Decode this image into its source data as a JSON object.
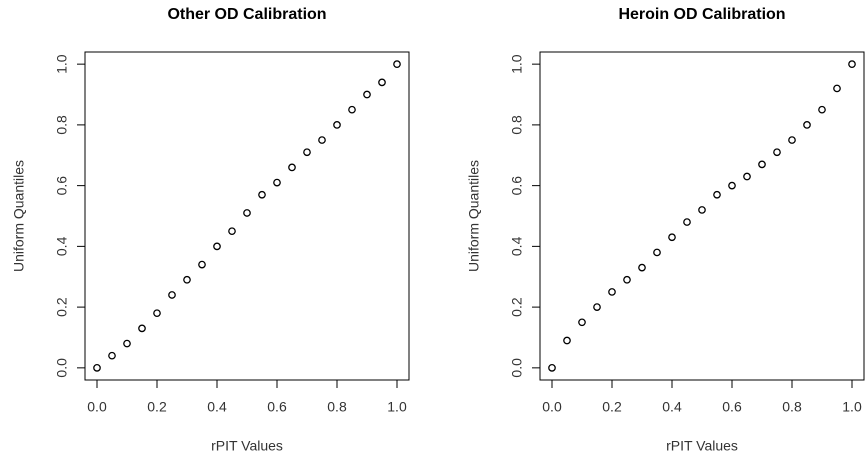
{
  "chart_data": [
    {
      "type": "scatter",
      "title": "Other OD Calibration",
      "x_label": "rPIT Values",
      "y_label": "Uniform Quantiles",
      "x": [
        0,
        0.05,
        0.1,
        0.15,
        0.2,
        0.25,
        0.3,
        0.35,
        0.4,
        0.45,
        0.5,
        0.55,
        0.6,
        0.65,
        0.7,
        0.75,
        0.8,
        0.85,
        0.9,
        0.95,
        1
      ],
      "series": [
        {
          "color": "#000000",
          "values": [
            0,
            0.04,
            0.08,
            0.13,
            0.18,
            0.24,
            0.29,
            0.34,
            0.4,
            0.45,
            0.51,
            0.57,
            0.61,
            0.66,
            0.71,
            0.75,
            0.8,
            0.85,
            0.9,
            0.94,
            1
          ]
        }
      ],
      "xlim": [
        -0.04,
        1.04
      ],
      "ylim": [
        -0.04,
        1.04
      ],
      "xticks": [
        {
          "value": 0,
          "label": "0.0"
        },
        0.2,
        0.4,
        0.6,
        0.8,
        {
          "value": 1,
          "label": "1.0"
        }
      ],
      "yticks": [
        {
          "value": 0,
          "label": "0.0"
        },
        0.2,
        0.4,
        0.6,
        0.8,
        {
          "value": 1,
          "label": "1.0"
        }
      ]
    },
    {
      "type": "scatter",
      "title": "Heroin OD Calibration",
      "x_label": "rPIT Values",
      "y_label": "Uniform Quantiles",
      "x": [
        0,
        0.05,
        0.1,
        0.15,
        0.2,
        0.25,
        0.3,
        0.35,
        0.4,
        0.45,
        0.5,
        0.55,
        0.6,
        0.65,
        0.7,
        0.75,
        0.8,
        0.85,
        0.9,
        0.95,
        1
      ],
      "series": [
        {
          "color": "#000000",
          "values": [
            0,
            0.09,
            0.15,
            0.2,
            0.25,
            0.29,
            0.33,
            0.38,
            0.43,
            0.48,
            0.52,
            0.57,
            0.6,
            0.63,
            0.67,
            0.71,
            0.75,
            0.8,
            0.85,
            0.92,
            1
          ]
        }
      ],
      "xlim": [
        -0.04,
        1.04
      ],
      "ylim": [
        -0.04,
        1.04
      ],
      "xticks": [
        {
          "value": 0,
          "label": "0.0"
        },
        0.2,
        0.4,
        0.6,
        0.8,
        {
          "value": 1,
          "label": "1.0"
        }
      ],
      "yticks": [
        {
          "value": 0,
          "label": "0.0"
        },
        0.2,
        0.4,
        0.6,
        0.8,
        {
          "value": 1,
          "label": "1.0"
        }
      ]
    }
  ]
}
